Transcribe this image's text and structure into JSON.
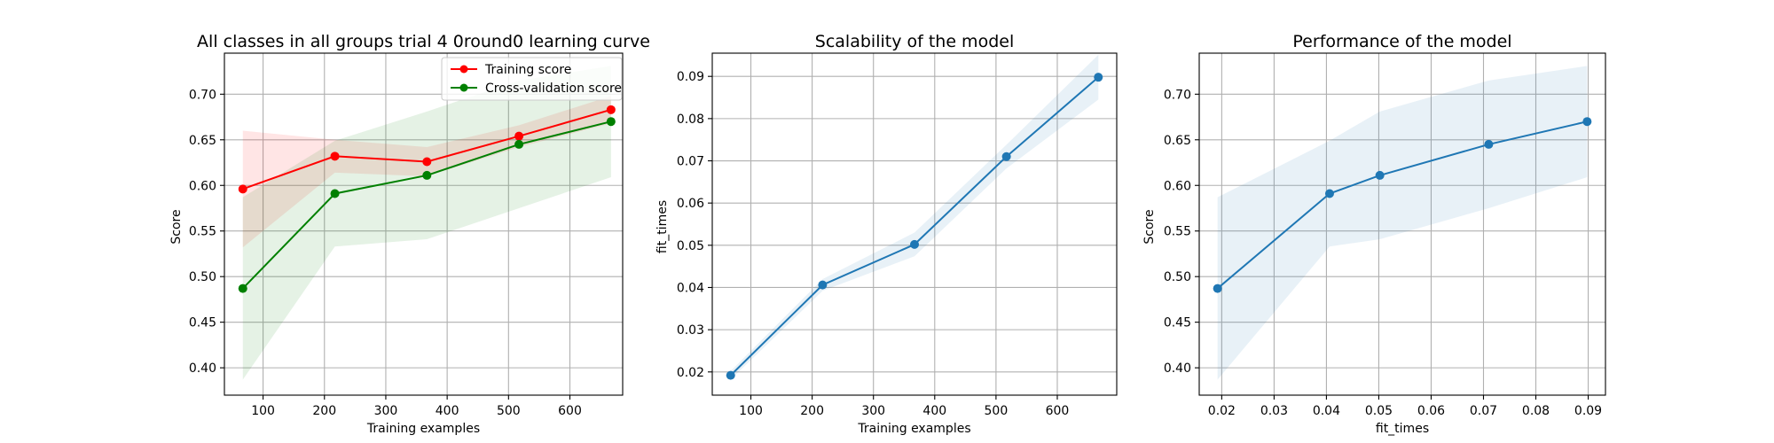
{
  "chart_data": [
    {
      "type": "line",
      "title": "All classes in all groups trial 4 0round0 learning curve",
      "xlabel": "Training examples",
      "ylabel": "Score",
      "xlim": [
        37,
        686
      ],
      "ylim": [
        0.37,
        0.745
      ],
      "xticks": [
        100,
        200,
        300,
        400,
        500,
        600
      ],
      "yticks": [
        0.4,
        0.45,
        0.5,
        0.55,
        0.6,
        0.65,
        0.7
      ],
      "ytick_labels": [
        "0.40",
        "0.45",
        "0.50",
        "0.55",
        "0.60",
        "0.65",
        "0.70"
      ],
      "grid": true,
      "legend_position": "top-right",
      "series": [
        {
          "name": "Training score",
          "color": "#ff0000",
          "x": [
            67,
            217,
            367,
            517,
            667
          ],
          "y": [
            0.596,
            0.632,
            0.626,
            0.654,
            0.683
          ],
          "band_low": [
            0.532,
            0.614,
            0.61,
            0.642,
            0.668
          ],
          "band_high": [
            0.66,
            0.65,
            0.642,
            0.666,
            0.698
          ]
        },
        {
          "name": "Cross-validation score",
          "color": "#008000",
          "x": [
            67,
            217,
            367,
            517,
            667
          ],
          "y": [
            0.487,
            0.591,
            0.611,
            0.645,
            0.67
          ],
          "band_low": [
            0.387,
            0.533,
            0.541,
            0.575,
            0.609
          ],
          "band_high": [
            0.587,
            0.649,
            0.681,
            0.715,
            0.731
          ]
        }
      ]
    },
    {
      "type": "line",
      "title": "Scalability of the model",
      "xlabel": "Training examples",
      "ylabel": "fit_times",
      "xlim": [
        37,
        697
      ],
      "ylim": [
        0.0145,
        0.0955
      ],
      "xticks": [
        100,
        200,
        300,
        400,
        500,
        600
      ],
      "yticks": [
        0.02,
        0.03,
        0.04,
        0.05,
        0.06,
        0.07,
        0.08,
        0.09
      ],
      "ytick_labels": [
        "0.02",
        "0.03",
        "0.04",
        "0.05",
        "0.06",
        "0.07",
        "0.08",
        "0.09"
      ],
      "grid": true,
      "series": [
        {
          "color": "#1f77b4",
          "x": [
            67,
            217,
            367,
            517,
            667
          ],
          "y": [
            0.0192,
            0.0406,
            0.0502,
            0.071,
            0.0898
          ],
          "band_low": [
            0.0182,
            0.0392,
            0.0474,
            0.0682,
            0.0845
          ],
          "band_high": [
            0.0202,
            0.042,
            0.053,
            0.0738,
            0.0951
          ]
        }
      ]
    },
    {
      "type": "line",
      "title": "Performance of the model",
      "xlabel": "fit_times",
      "ylabel": "Score",
      "xlim": [
        0.0157,
        0.0933
      ],
      "ylim": [
        0.37,
        0.745
      ],
      "xticks": [
        0.02,
        0.03,
        0.04,
        0.05,
        0.06,
        0.07,
        0.08,
        0.09
      ],
      "xtick_labels": [
        "0.02",
        "0.03",
        "0.04",
        "0.05",
        "0.06",
        "0.07",
        "0.08",
        "0.09"
      ],
      "yticks": [
        0.4,
        0.45,
        0.5,
        0.55,
        0.6,
        0.65,
        0.7
      ],
      "ytick_labels": [
        "0.40",
        "0.45",
        "0.50",
        "0.55",
        "0.60",
        "0.65",
        "0.70"
      ],
      "grid": true,
      "series": [
        {
          "color": "#1f77b4",
          "x": [
            0.0192,
            0.0406,
            0.0502,
            0.071,
            0.0898
          ],
          "y": [
            0.487,
            0.591,
            0.611,
            0.645,
            0.67
          ],
          "band_low": [
            0.387,
            0.533,
            0.541,
            0.575,
            0.609
          ],
          "band_high": [
            0.587,
            0.649,
            0.681,
            0.715,
            0.731
          ]
        }
      ]
    }
  ]
}
